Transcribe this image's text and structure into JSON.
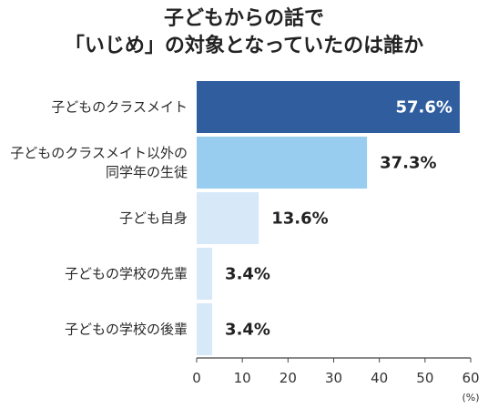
{
  "chart_data": {
    "type": "bar",
    "orientation": "horizontal",
    "title": [
      "子どもからの話で",
      "「いじめ」の対象となっていたのは誰か"
    ],
    "categories": [
      [
        "子どものクラスメイト"
      ],
      [
        "子どものクラスメイト以外の",
        "同学年の生徒"
      ],
      [
        "子ども自身"
      ],
      [
        "子どもの学校の先輩"
      ],
      [
        "子どもの学校の後輩"
      ]
    ],
    "values": [
      57.6,
      37.3,
      13.6,
      3.4,
      3.4
    ],
    "value_labels": [
      "57.6%",
      "37.3%",
      "13.6%",
      "3.4%",
      "3.4%"
    ],
    "colors": [
      "#2f5d9e",
      "#99cdef",
      "#d7e9f8",
      "#d7e9f8",
      "#d7e9f8"
    ],
    "value_label_colors": [
      "#ffffff",
      "#222222",
      "#222222",
      "#222222",
      "#222222"
    ],
    "xlim": [
      0,
      60
    ],
    "xticks": [
      0,
      10,
      20,
      30,
      40,
      50,
      60
    ],
    "unit_label": "(%)",
    "grid": false,
    "legend": "none"
  }
}
